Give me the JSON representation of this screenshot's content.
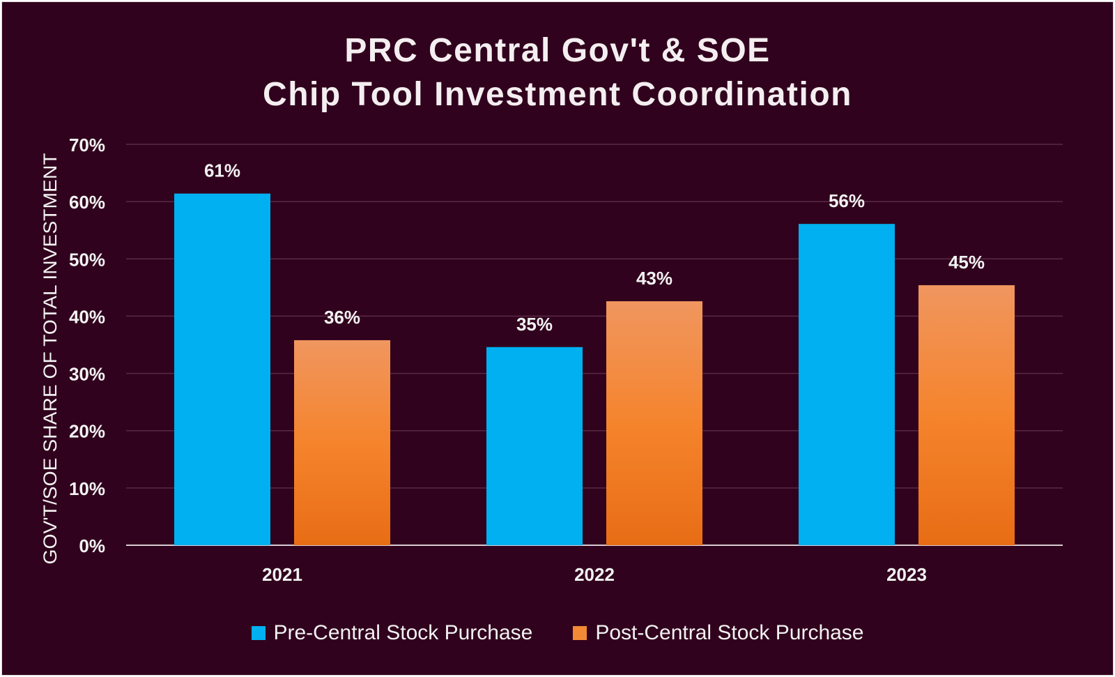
{
  "chart_data": {
    "type": "bar",
    "title_lines": [
      "PRC Central Gov't & SOE",
      "Chip Tool Investment Coordination"
    ],
    "ylabel": "GOV'T/SOE SHARE OF TOTAL INVESTMENT",
    "xlabel": "",
    "categories": [
      "2021",
      "2022",
      "2023"
    ],
    "ylim": [
      0,
      70
    ],
    "y_ticks": [
      0,
      10,
      20,
      30,
      40,
      50,
      60,
      70
    ],
    "y_tick_labels": [
      "0%",
      "10%",
      "20%",
      "30%",
      "40%",
      "50%",
      "60%",
      "70%"
    ],
    "grid": true,
    "legend_position": "bottom",
    "series": [
      {
        "name": "Pre-Central Stock Purchase",
        "values": [
          61.4,
          34.6,
          56.1
        ],
        "labels": [
          "61%",
          "35%",
          "56%"
        ],
        "color": "#00b0f0"
      },
      {
        "name": "Post-Central Stock Purchase",
        "values": [
          35.8,
          42.6,
          45.4
        ],
        "labels": [
          "36%",
          "43%",
          "45%"
        ],
        "color": "#f28a35",
        "gradient_top": "#f0965f",
        "gradient_mid": "#f5842d",
        "gradient_bottom": "#e86d15"
      }
    ]
  },
  "colors": {
    "background": "#31021d",
    "gridline": "#5a2a45",
    "axis_line": "#d8cdd3",
    "text": "#f2f2f2"
  }
}
